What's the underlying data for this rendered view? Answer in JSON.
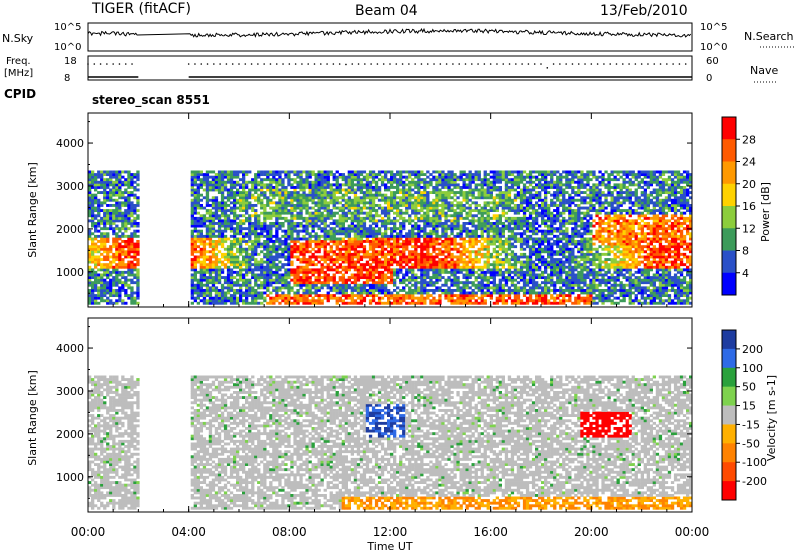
{
  "header": {
    "station": "TIGER (fitACF)",
    "beam": "Beam 04",
    "date": "13/Feb/2010"
  },
  "strips": {
    "nsky_label": "N.Sky",
    "nsky_ticks": [
      "10^5",
      "10^0"
    ],
    "nsearch_label": "N.Search",
    "nsearch_ticks": [
      "10^5",
      "10^0"
    ],
    "freq_label_line1": "Freq.",
    "freq_label_line2": "[MHz]",
    "freq_ticks": [
      "18",
      "8"
    ],
    "nave_label": "Nave",
    "nave_ticks": [
      "60",
      "0"
    ],
    "cpid_label": "CPID",
    "cpid_text": "stereo_scan 8551"
  },
  "chart_data": [
    {
      "type": "heatmap",
      "name": "power",
      "xlabel": "",
      "ylabel": "Slant Range [km]",
      "yticks": [
        "4000",
        "3000",
        "2000",
        "1000"
      ],
      "yrange_km": [
        180,
        4700
      ],
      "colorbar": {
        "label": "Power [dB]",
        "ticks": [
          "28",
          "24",
          "20",
          "16",
          "12",
          "8",
          "4"
        ],
        "colors": [
          "#ff0000",
          "#ff5a00",
          "#ff9900",
          "#ffd200",
          "#8ccd3c",
          "#3c9b5a",
          "#2a50c8",
          "#0000ff"
        ]
      },
      "data_gaps_hours": [
        [
          2.0,
          4.0
        ]
      ]
    },
    {
      "type": "heatmap",
      "name": "velocity",
      "xlabel": "Time UT",
      "ylabel": "Slant Range [km]",
      "yticks": [
        "4000",
        "3000",
        "2000",
        "1000"
      ],
      "xticks": [
        "00:00",
        "04:00",
        "08:00",
        "12:00",
        "16:00",
        "20:00",
        "00:00"
      ],
      "xrange_hours": [
        0,
        24
      ],
      "colorbar": {
        "label": "Velocity [m s-1]",
        "ticks": [
          "200",
          "100",
          "50",
          "15",
          "-15",
          "-50",
          "-100",
          "-200"
        ],
        "colors": [
          "#1e3ca0",
          "#2e6ae6",
          "#2aa13c",
          "#7ed24e",
          "#bdbdbd",
          "#ffb000",
          "#ff8200",
          "#ff4a00",
          "#ff0000"
        ]
      },
      "data_gaps_hours": [
        [
          2.0,
          4.0
        ]
      ]
    }
  ]
}
